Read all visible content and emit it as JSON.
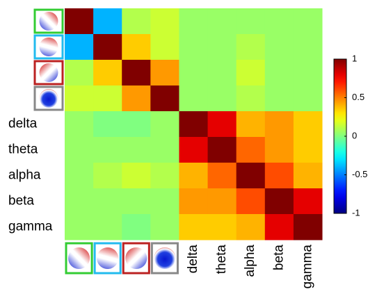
{
  "chart_data": {
    "type": "heatmap",
    "categories": [
      null,
      null,
      null,
      null,
      "delta",
      "theta",
      "alpha",
      "beta",
      "gamma"
    ],
    "z": [
      [
        1,
        -0.4,
        0.1,
        0.15,
        0.05,
        0.05,
        0.05,
        0.05,
        0.05
      ],
      [
        -0.4,
        1,
        0.35,
        0.15,
        0.05,
        0.05,
        0.1,
        0.05,
        0.05
      ],
      [
        0.1,
        0.35,
        1,
        0.45,
        0.05,
        0.05,
        0.15,
        0.05,
        0.05
      ],
      [
        0.15,
        0.15,
        0.45,
        1,
        0.05,
        0.05,
        0.1,
        0.05,
        0.05
      ],
      [
        0.05,
        0.0,
        0.0,
        0.05,
        1,
        0.8,
        0.4,
        0.45,
        0.35
      ],
      [
        0.05,
        0.05,
        0.05,
        0.05,
        0.8,
        1,
        0.55,
        0.45,
        0.35
      ],
      [
        0.05,
        0.1,
        0.15,
        0.1,
        0.4,
        0.55,
        1,
        0.6,
        0.4
      ],
      [
        0.05,
        0.05,
        0.05,
        0.05,
        0.45,
        0.45,
        0.6,
        1,
        0.8
      ],
      [
        0.05,
        0.05,
        0.0,
        0.05,
        0.35,
        0.35,
        0.4,
        0.8,
        1
      ]
    ],
    "colormap": "jet",
    "zlim": [
      -1,
      1
    ],
    "zticks": [
      1,
      0.5,
      0,
      -0.5,
      -1
    ]
  }
}
